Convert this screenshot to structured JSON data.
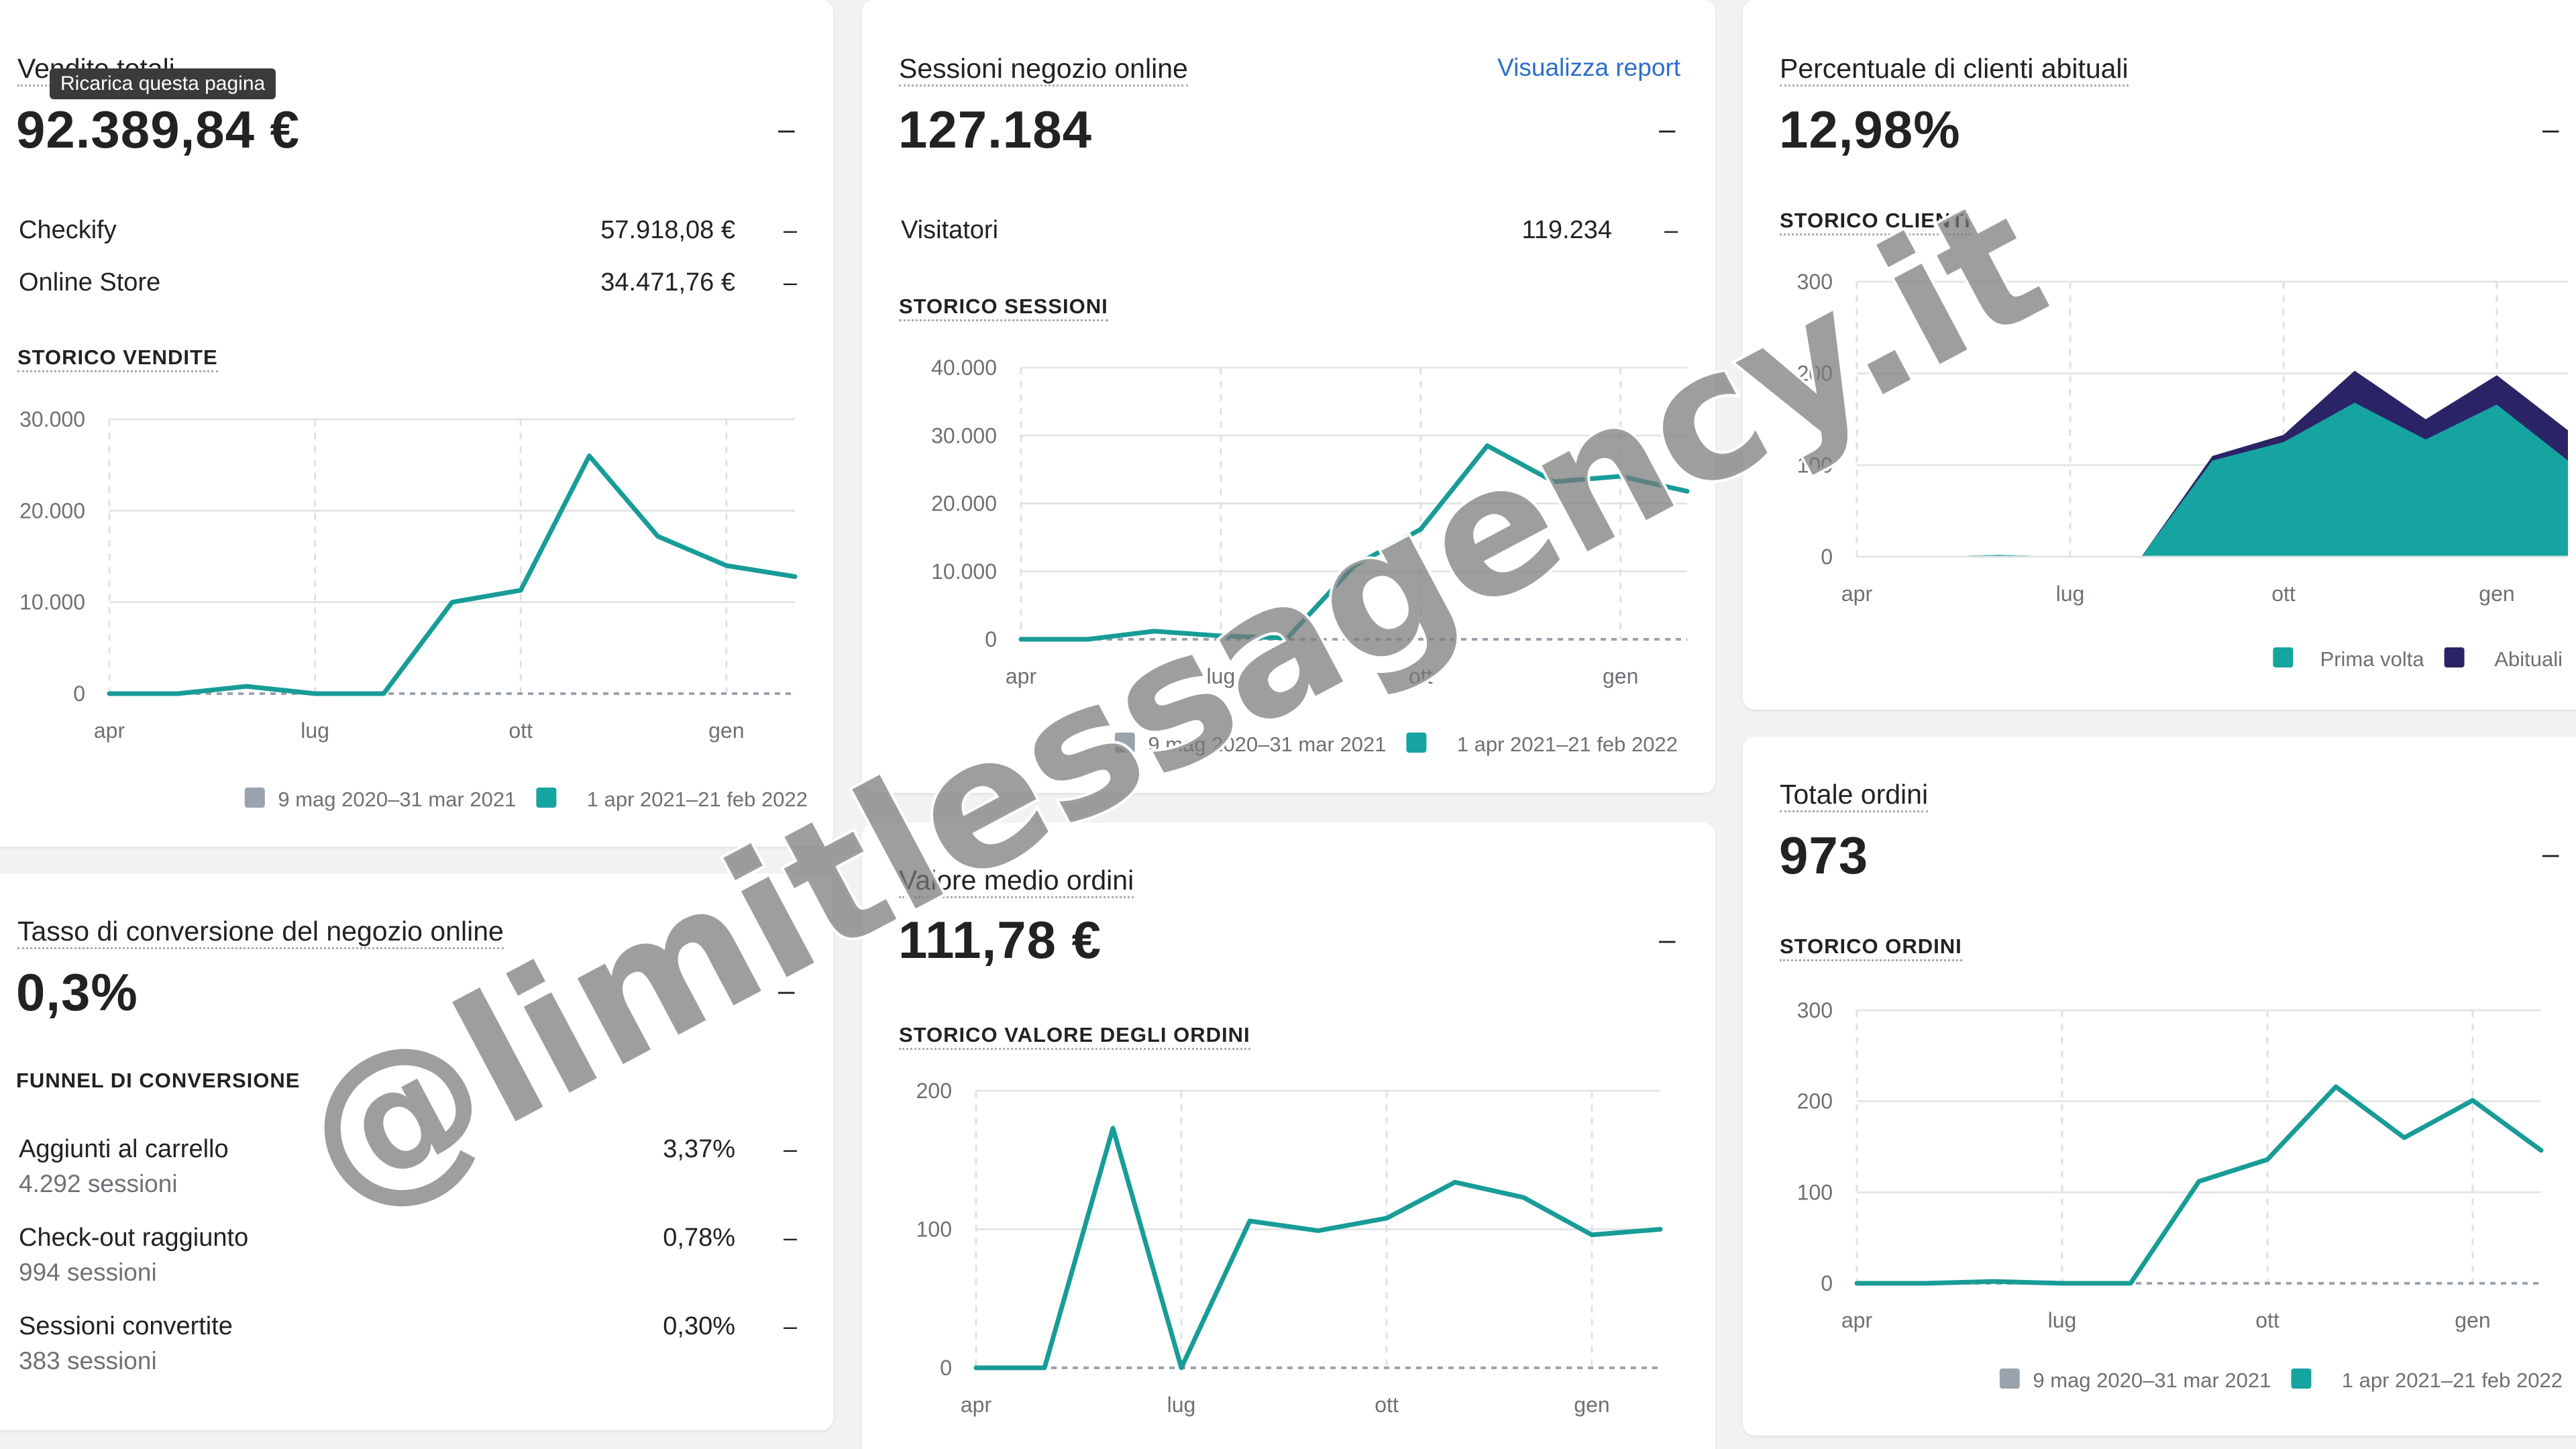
{
  "tooltip": "Ricarica questa pagina",
  "sales": {
    "title": "Vendite totali",
    "value": "92.389,84 €",
    "dash": "–",
    "rows": [
      {
        "label": "Checkify",
        "value": "57.918,08 €",
        "dash": "–"
      },
      {
        "label": "Online Store",
        "value": "34.471,76 €",
        "dash": "–"
      }
    ],
    "section": "STORICO VENDITE",
    "legend": [
      "9 mag 2020–31 mar 2021",
      "1 apr 2021–21 feb 2022"
    ]
  },
  "sessions": {
    "title": "Sessioni negozio online",
    "link": "Visualizza report",
    "value": "127.184",
    "dash": "–",
    "rows": [
      {
        "label": "Visitatori",
        "value": "119.234",
        "dash": "–"
      }
    ],
    "section": "STORICO SESSIONI",
    "legend": [
      "9 mag 2020–31 mar 2021",
      "1 apr 2021–21 feb 2022"
    ]
  },
  "returning": {
    "title": "Percentuale di clienti abituali",
    "value": "12,98%",
    "dash": "–",
    "section": "STORICO CLIENTI",
    "legend": [
      "Prima volta",
      "Abituali"
    ]
  },
  "conversion": {
    "title": "Tasso di conversione del negozio online",
    "value": "0,3%",
    "dash": "–",
    "section": "FUNNEL DI CONVERSIONE",
    "rows": [
      {
        "label": "Aggiunti al carrello",
        "sub": "4.292 sessioni",
        "value": "3,37%",
        "dash": "–"
      },
      {
        "label": "Check-out raggiunto",
        "sub": "994 sessioni",
        "value": "0,78%",
        "dash": "–"
      },
      {
        "label": "Sessioni convertite",
        "sub": "383 sessioni",
        "value": "0,30%",
        "dash": "–"
      }
    ]
  },
  "aov": {
    "title": "Valore medio ordini",
    "value": "111,78 €",
    "dash": "–",
    "section": "STORICO VALORE DEGLI ORDINI"
  },
  "orders": {
    "title": "Totale ordini",
    "value": "973",
    "dash": "–",
    "section": "STORICO ORDINI",
    "legend": [
      "9 mag 2020–31 mar 2021",
      "1 apr 2021–21 feb 2022"
    ]
  },
  "watermark": "@limitlessagency.it",
  "colors": {
    "current": "#189c97",
    "previous": "#9aa3ad",
    "returning": "#2a2466",
    "first": "#16a4a0",
    "link": "#2c6ecb"
  },
  "chart_data": [
    {
      "type": "line",
      "name": "sales",
      "x_ticks": [
        "apr",
        "lug",
        "ott",
        "gen"
      ],
      "y_ticks": [
        "0",
        "10.000",
        "20.000",
        "30.000"
      ],
      "ylim": [
        0,
        30000
      ],
      "series": [
        {
          "name": "1 apr 2021–21 feb 2022",
          "x": [
            0,
            1,
            2,
            3,
            4,
            5,
            6,
            7,
            8,
            9,
            10
          ],
          "values": [
            0,
            0,
            800,
            0,
            0,
            10000,
            11300,
            26000,
            17200,
            14000,
            12800
          ]
        },
        {
          "name": "9 mag 2020–31 mar 2021",
          "x": [
            0,
            10
          ],
          "values": [
            0,
            0
          ]
        }
      ],
      "grid": true,
      "legend": "bottom-right"
    },
    {
      "type": "line",
      "name": "sessions",
      "x_ticks": [
        "apr",
        "lug",
        "ott",
        "gen"
      ],
      "y_ticks": [
        "0",
        "10.000",
        "20.000",
        "30.000",
        "40.000"
      ],
      "ylim": [
        0,
        40000
      ],
      "series": [
        {
          "name": "1 apr 2021–21 feb 2022",
          "x": [
            0,
            1,
            2,
            3,
            4,
            5,
            6,
            7,
            8,
            9,
            10
          ],
          "values": [
            0,
            0,
            1200,
            500,
            200,
            10800,
            16200,
            28500,
            23200,
            24000,
            21800
          ]
        },
        {
          "name": "9 mag 2020–31 mar 2021",
          "x": [
            0,
            10
          ],
          "values": [
            0,
            0
          ]
        }
      ],
      "grid": true,
      "legend": "bottom-right"
    },
    {
      "type": "area",
      "name": "customers",
      "x_ticks": [
        "apr",
        "lug",
        "ott",
        "gen"
      ],
      "y_ticks": [
        "0",
        "100",
        "200",
        "300"
      ],
      "ylim": [
        0,
        300
      ],
      "x": [
        0,
        1,
        2,
        3,
        4,
        5,
        6,
        7,
        8,
        9,
        10
      ],
      "series": [
        {
          "name": "Prima volta",
          "values": [
            0,
            0,
            2,
            0,
            0,
            105,
            125,
            168,
            128,
            166,
            105
          ]
        },
        {
          "name": "Abituali",
          "values": [
            0,
            0,
            0,
            0,
            0,
            5,
            8,
            35,
            22,
            32,
            33
          ]
        }
      ],
      "grid": true,
      "legend": "bottom-right"
    },
    {
      "type": "line",
      "name": "average order value",
      "x_ticks": [
        "apr",
        "lug",
        "ott",
        "gen"
      ],
      "y_ticks": [
        "0",
        "100",
        "200"
      ],
      "ylim": [
        0,
        200
      ],
      "series": [
        {
          "name": "1 apr 2021–21 feb 2022",
          "x": [
            0,
            1,
            2,
            3,
            4,
            5,
            6,
            7,
            8,
            9,
            10
          ],
          "values": [
            0,
            0,
            173,
            0,
            106,
            99,
            108,
            134,
            123,
            96,
            100
          ]
        },
        {
          "name": "9 mag 2020–31 mar 2021",
          "x": [
            0,
            10
          ],
          "values": [
            0,
            0
          ]
        }
      ],
      "grid": true
    },
    {
      "type": "line",
      "name": "orders",
      "x_ticks": [
        "apr",
        "lug",
        "ott",
        "gen"
      ],
      "y_ticks": [
        "0",
        "100",
        "200",
        "300"
      ],
      "ylim": [
        0,
        300
      ],
      "series": [
        {
          "name": "1 apr 2021–21 feb 2022",
          "x": [
            0,
            1,
            2,
            3,
            4,
            5,
            6,
            7,
            8,
            9,
            10
          ],
          "values": [
            0,
            0,
            2,
            0,
            0,
            112,
            136,
            216,
            160,
            201,
            146
          ]
        },
        {
          "name": "9 mag 2020–31 mar 2021",
          "x": [
            0,
            10
          ],
          "values": [
            0,
            0
          ]
        }
      ],
      "grid": true,
      "legend": "bottom-right"
    }
  ]
}
